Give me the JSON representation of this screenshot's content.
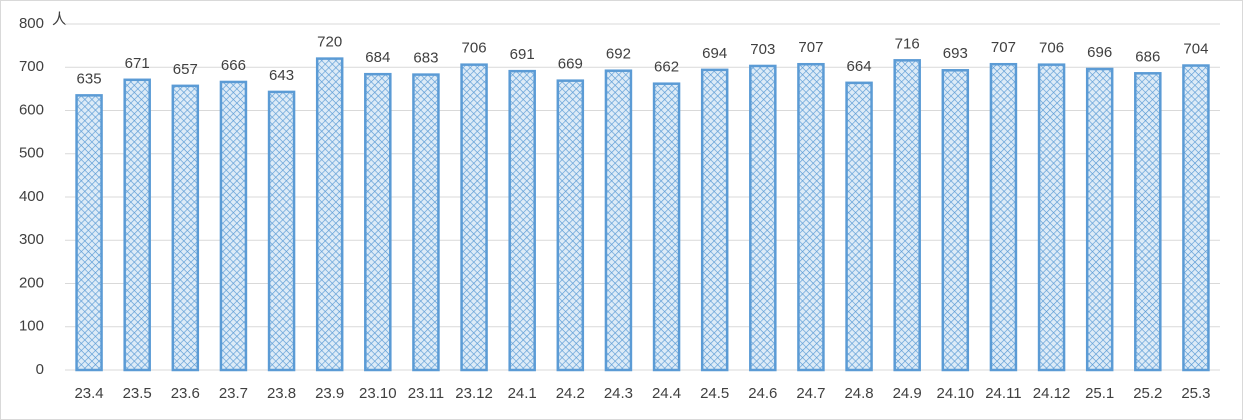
{
  "chart_data": {
    "type": "bar",
    "y_unit": "人",
    "categories": [
      "23.4",
      "23.5",
      "23.6",
      "23.7",
      "23.8",
      "23.9",
      "23.10",
      "23.11",
      "23.12",
      "24.1",
      "24.2",
      "24.3",
      "24.4",
      "24.5",
      "24.6",
      "24.7",
      "24.8",
      "24.9",
      "24.10",
      "24.11",
      "24.12",
      "25.1",
      "25.2",
      "25.3"
    ],
    "values": [
      635,
      671,
      657,
      666,
      643,
      720,
      684,
      683,
      706,
      691,
      669,
      692,
      662,
      694,
      703,
      707,
      664,
      716,
      693,
      707,
      706,
      696,
      686,
      704
    ],
    "color": "#5b9bd5",
    "ylim": [
      0,
      800
    ],
    "yticks": [
      0,
      100,
      200,
      300,
      400,
      500,
      600,
      700,
      800
    ],
    "grid": true
  }
}
